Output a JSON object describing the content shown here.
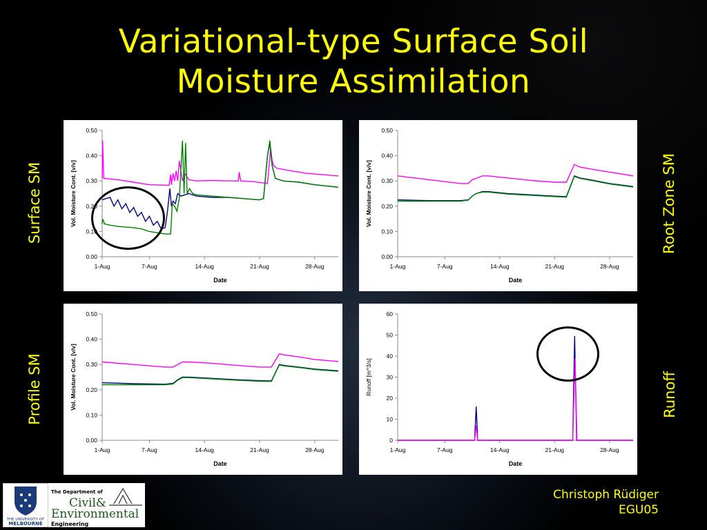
{
  "slide": {
    "title_line1": "Variational-type Surface Soil",
    "title_line2": "Moisture Assimilation",
    "labels": {
      "surface": "Surface SM",
      "root": "Root Zone SM",
      "profile": "Profile SM",
      "runoff": "Runoff"
    },
    "author": "Christoph Rüdiger",
    "conference": "EGU05",
    "logos": {
      "uni_line1": "THE UNIVERSITY OF",
      "uni_line2": "MELBOURNE",
      "dept_line1": "The Department of",
      "dept_line2": "Civil&",
      "dept_line3": "Environmental",
      "dept_line4": "Engineering"
    }
  },
  "colors": {
    "title": "#ffff00",
    "magenta": "#ff00ff",
    "navy": "#000080",
    "green": "#008000"
  },
  "chart_data": [
    {
      "id": "surface",
      "type": "line",
      "xlabel": "Date",
      "ylabel": "Vol. Moisture Cont. [v/v]",
      "xlim": [
        1,
        31
      ],
      "ylim": [
        0,
        0.5
      ],
      "xticks": [
        1,
        7,
        14,
        21,
        28
      ],
      "xtick_labels": [
        "1-Aug",
        "7-Aug",
        "14-Aug",
        "21-Aug",
        "28-Aug"
      ],
      "yticks": [
        0,
        0.1,
        0.2,
        0.3,
        0.4,
        0.5
      ],
      "ytick_labels": [
        "0.00",
        "0.10",
        "0.20",
        "0.30",
        "0.40",
        "0.50"
      ],
      "series": [
        {
          "color": "#ff00ff",
          "x": [
            1,
            1.05,
            1.2,
            3,
            5,
            7,
            9.5,
            9.7,
            9.8,
            10,
            10.2,
            10.4,
            10.6,
            10.8,
            11.2,
            11.5,
            12,
            13,
            15,
            17,
            18.3,
            18.4,
            18.6,
            20,
            22,
            22.4,
            22.6,
            22.8,
            23.2,
            25,
            27,
            31
          ],
          "y": [
            0.31,
            0.46,
            0.31,
            0.305,
            0.295,
            0.285,
            0.283,
            0.325,
            0.285,
            0.33,
            0.3,
            0.34,
            0.3,
            0.38,
            0.3,
            0.33,
            0.305,
            0.3,
            0.302,
            0.3,
            0.3,
            0.335,
            0.3,
            0.298,
            0.29,
            0.43,
            0.38,
            0.36,
            0.35,
            0.34,
            0.33,
            0.32
          ]
        },
        {
          "color": "#000080",
          "x": [
            1,
            2,
            2.5,
            3,
            3.5,
            4,
            4.5,
            5,
            5.5,
            6,
            6.5,
            7,
            7.5,
            8,
            8.5,
            9,
            9.3,
            9.6,
            9.8,
            10,
            10.3,
            10.6,
            11,
            11.5,
            12,
            13,
            15,
            17,
            19,
            21,
            21.5,
            22,
            22.3,
            22.6,
            23,
            24,
            26,
            28,
            31
          ],
          "y": [
            0.225,
            0.235,
            0.2,
            0.225,
            0.19,
            0.21,
            0.175,
            0.195,
            0.16,
            0.175,
            0.14,
            0.16,
            0.125,
            0.14,
            0.11,
            0.115,
            0.18,
            0.27,
            0.2,
            0.22,
            0.21,
            0.25,
            0.24,
            0.245,
            0.25,
            0.24,
            0.235,
            0.235,
            0.23,
            0.225,
            0.23,
            0.4,
            0.45,
            0.36,
            0.31,
            0.3,
            0.295,
            0.285,
            0.275
          ]
        },
        {
          "color": "#008000",
          "x": [
            1,
            1.05,
            1.3,
            2,
            3,
            5,
            6,
            7,
            8,
            9,
            9.4,
            9.7,
            9.9,
            10.2,
            10.5,
            10.8,
            11.2,
            11.4,
            11.6,
            11.8,
            12.1,
            12.5,
            13,
            15,
            17,
            19,
            21,
            21.5,
            22,
            22.3,
            22.6,
            23,
            24,
            26,
            28,
            31
          ],
          "y": [
            0.13,
            0.15,
            0.13,
            0.125,
            0.12,
            0.115,
            0.11,
            0.1,
            0.095,
            0.09,
            0.09,
            0.09,
            0.21,
            0.2,
            0.18,
            0.23,
            0.46,
            0.25,
            0.45,
            0.25,
            0.27,
            0.25,
            0.245,
            0.24,
            0.235,
            0.23,
            0.225,
            0.23,
            0.4,
            0.46,
            0.36,
            0.31,
            0.3,
            0.295,
            0.285,
            0.275
          ]
        }
      ]
    },
    {
      "id": "root",
      "type": "line",
      "xlabel": "Date",
      "ylabel": "Vol. Moisture Cont. [v/v]",
      "xlim": [
        1,
        31
      ],
      "ylim": [
        0,
        0.5
      ],
      "xticks": [
        1,
        7,
        14,
        21,
        28
      ],
      "xtick_labels": [
        "1-Aug",
        "7-Aug",
        "14-Aug",
        "21-Aug",
        "28-Aug"
      ],
      "yticks": [
        0,
        0.1,
        0.2,
        0.3,
        0.4,
        0.5
      ],
      "ytick_labels": [
        "0.00",
        "0.10",
        "0.20",
        "0.30",
        "0.40",
        "0.50"
      ],
      "series": [
        {
          "color": "#ff00ff",
          "x": [
            1,
            5,
            9,
            10,
            10.5,
            11,
            11.8,
            12.5,
            15,
            18,
            21,
            22.5,
            23.5,
            24.2,
            26,
            28,
            31
          ],
          "y": [
            0.32,
            0.305,
            0.29,
            0.29,
            0.305,
            0.31,
            0.32,
            0.32,
            0.312,
            0.302,
            0.295,
            0.295,
            0.365,
            0.355,
            0.345,
            0.335,
            0.32
          ]
        },
        {
          "color": "#000080",
          "x": [
            1,
            5,
            9,
            10,
            10.5,
            11,
            11.8,
            12.5,
            15,
            18,
            21,
            22.5,
            23.5,
            24.2,
            26,
            28,
            31
          ],
          "y": [
            0.225,
            0.222,
            0.222,
            0.225,
            0.24,
            0.25,
            0.258,
            0.258,
            0.25,
            0.245,
            0.24,
            0.238,
            0.32,
            0.312,
            0.302,
            0.29,
            0.278
          ]
        },
        {
          "color": "#008000",
          "x": [
            1,
            5,
            9,
            10,
            10.5,
            11,
            11.8,
            12.5,
            15,
            18,
            21,
            22.5,
            23.5,
            24.2,
            26,
            28,
            31
          ],
          "y": [
            0.22,
            0.22,
            0.22,
            0.224,
            0.24,
            0.25,
            0.256,
            0.256,
            0.248,
            0.243,
            0.238,
            0.236,
            0.318,
            0.31,
            0.3,
            0.288,
            0.276
          ]
        }
      ]
    },
    {
      "id": "profile",
      "type": "line",
      "xlabel": "Date",
      "ylabel": "Vol. Moisture Cont. [v/v]",
      "xlim": [
        1,
        31
      ],
      "ylim": [
        0,
        0.5
      ],
      "xticks": [
        1,
        7,
        14,
        21,
        28
      ],
      "xtick_labels": [
        "1-Aug",
        "7-Aug",
        "14-Aug",
        "21-Aug",
        "28-Aug"
      ],
      "yticks": [
        0,
        0.1,
        0.2,
        0.3,
        0.4,
        0.5
      ],
      "ytick_labels": [
        "0.00",
        "0.10",
        "0.20",
        "0.30",
        "0.40",
        "0.50"
      ],
      "series": [
        {
          "color": "#ff00ff",
          "x": [
            1,
            5,
            9,
            10,
            10.6,
            11.2,
            12,
            15,
            18,
            21,
            22.5,
            23.5,
            24.2,
            26,
            28,
            31
          ],
          "y": [
            0.31,
            0.3,
            0.29,
            0.29,
            0.3,
            0.31,
            0.31,
            0.305,
            0.297,
            0.29,
            0.29,
            0.342,
            0.338,
            0.33,
            0.32,
            0.312
          ]
        },
        {
          "color": "#000080",
          "x": [
            1,
            5,
            9,
            10,
            10.6,
            11.2,
            12,
            15,
            18,
            21,
            22.5,
            23.5,
            24.2,
            26,
            28,
            31
          ],
          "y": [
            0.228,
            0.224,
            0.222,
            0.225,
            0.24,
            0.25,
            0.25,
            0.245,
            0.24,
            0.236,
            0.235,
            0.3,
            0.296,
            0.29,
            0.282,
            0.275
          ]
        },
        {
          "color": "#008000",
          "x": [
            1,
            5,
            9,
            10,
            10.6,
            11.2,
            12,
            15,
            18,
            21,
            22.5,
            23.5,
            24.2,
            26,
            28,
            31
          ],
          "y": [
            0.22,
            0.22,
            0.22,
            0.223,
            0.238,
            0.248,
            0.248,
            0.243,
            0.238,
            0.234,
            0.233,
            0.298,
            0.294,
            0.288,
            0.28,
            0.273
          ]
        }
      ]
    },
    {
      "id": "runoff",
      "type": "line",
      "xlabel": "Date",
      "ylabel": "Runoff [m^3/s]",
      "xlim": [
        1,
        31
      ],
      "ylim": [
        0,
        60
      ],
      "xticks": [
        1,
        7,
        14,
        21,
        28
      ],
      "xtick_labels": [
        "1-Aug",
        "7-Aug",
        "14-Aug",
        "21-Aug",
        "28-Aug"
      ],
      "yticks": [
        0,
        10,
        20,
        30,
        40,
        50,
        60
      ],
      "ytick_labels": [
        "0",
        "10",
        "20",
        "30",
        "40",
        "50",
        "60"
      ],
      "series": [
        {
          "color": "#000080",
          "x": [
            1,
            10.8,
            11,
            11.2,
            23.3,
            23.55,
            23.8,
            31
          ],
          "y": [
            0,
            0,
            16,
            0,
            0,
            49.5,
            0,
            0
          ]
        },
        {
          "color": "#ff00ff",
          "x": [
            1,
            10.8,
            11,
            11.2,
            23.3,
            23.6,
            23.85,
            31
          ],
          "y": [
            0,
            0,
            7,
            0,
            0,
            39,
            0,
            0
          ]
        }
      ]
    }
  ]
}
